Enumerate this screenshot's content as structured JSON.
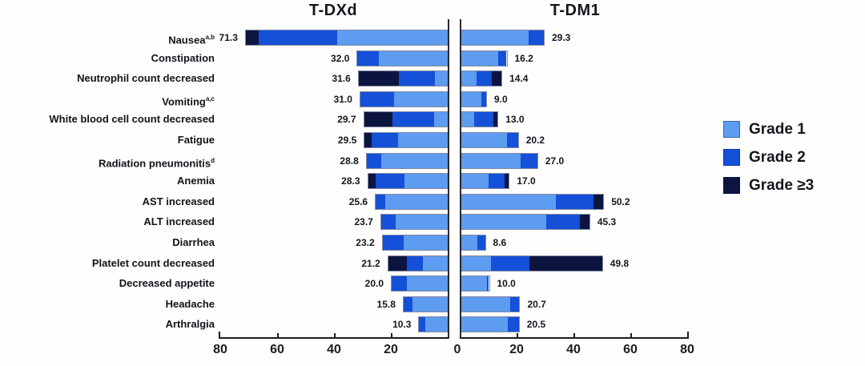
{
  "chart_data": {
    "type": "bar",
    "variant": "butterfly-diverging-stacked-horizontal",
    "panels": [
      {
        "name": "T-DXd",
        "side": "left"
      },
      {
        "name": "T-DM1",
        "side": "right"
      }
    ],
    "legend": [
      {
        "label": "Grade 1",
        "color": "#5d9cf0"
      },
      {
        "label": "Grade 2",
        "color": "#1550d8"
      },
      {
        "label": "Grade ≥3",
        "color": "#0c1540"
      }
    ],
    "axis": {
      "max": 80,
      "ticks_left": [
        80,
        60,
        40,
        20
      ],
      "center_label": "0",
      "ticks_right": [
        20,
        40,
        60,
        80
      ],
      "grid": false
    },
    "rows": [
      {
        "label": "Nausea",
        "sup": "a,b",
        "left": {
          "total": 71.3,
          "label": "71.3",
          "grade1": 38.9,
          "grade2": 27.7,
          "grade3plus": 4.7
        },
        "right": {
          "total": 29.3,
          "label": "29.3",
          "grade1": 23.7,
          "grade2": 5.6,
          "grade3plus": 0
        }
      },
      {
        "label": "Constipation",
        "sup": "",
        "left": {
          "total": 32.0,
          "label": "32.0",
          "grade1": 24.5,
          "grade2": 7.5,
          "grade3plus": 0
        },
        "right": {
          "total": 16.2,
          "label": "16.2",
          "grade1": 13.1,
          "grade2": 3.1,
          "grade3plus": 0
        }
      },
      {
        "label": "Neutrophil count decreased",
        "sup": "",
        "left": {
          "total": 31.6,
          "label": "31.6",
          "grade1": 4.3,
          "grade2": 12.8,
          "grade3plus": 14.5
        },
        "right": {
          "total": 14.4,
          "label": "14.4",
          "grade1": 5.3,
          "grade2": 5.6,
          "grade3plus": 3.5
        }
      },
      {
        "label": "Vomiting",
        "sup": "a,c",
        "left": {
          "total": 31.0,
          "label": "31.0",
          "grade1": 18.9,
          "grade2": 12.1,
          "grade3plus": 0
        },
        "right": {
          "total": 9.0,
          "label": "9.0",
          "grade1": 7.2,
          "grade2": 1.8,
          "grade3plus": 0
        }
      },
      {
        "label": "White blood cell count decreased",
        "sup": "",
        "left": {
          "total": 29.7,
          "label": "29.7",
          "grade1": 4.7,
          "grade2": 14.8,
          "grade3plus": 10.2
        },
        "right": {
          "total": 13.0,
          "label": "13.0",
          "grade1": 4.5,
          "grade2": 7.0,
          "grade3plus": 1.5
        }
      },
      {
        "label": "Fatigue",
        "sup": "",
        "left": {
          "total": 29.5,
          "label": "29.5",
          "grade1": 17.6,
          "grade2": 9.3,
          "grade3plus": 2.6
        },
        "right": {
          "total": 20.2,
          "label": "20.2",
          "grade1": 16.2,
          "grade2": 4.0,
          "grade3plus": 0
        }
      },
      {
        "label": "Radiation pneumonitis",
        "sup": "d",
        "left": {
          "total": 28.8,
          "label": "28.8",
          "grade1": 23.6,
          "grade2": 5.2,
          "grade3plus": 0
        },
        "right": {
          "total": 27.0,
          "label": "27.0",
          "grade1": 21.0,
          "grade2": 6.0,
          "grade3plus": 0
        }
      },
      {
        "label": "Anemia",
        "sup": "",
        "left": {
          "total": 28.3,
          "label": "28.3",
          "grade1": 15.2,
          "grade2": 10.3,
          "grade3plus": 2.8
        },
        "right": {
          "total": 17.0,
          "label": "17.0",
          "grade1": 9.6,
          "grade2": 5.8,
          "grade3plus": 1.6
        }
      },
      {
        "label": "AST increased",
        "sup": "",
        "left": {
          "total": 25.6,
          "label": "25.6",
          "grade1": 22.2,
          "grade2": 3.4,
          "grade3plus": 0
        },
        "right": {
          "total": 50.2,
          "label": "50.2",
          "grade1": 33.4,
          "grade2": 13.2,
          "grade3plus": 3.6
        }
      },
      {
        "label": "ALT increased",
        "sup": "",
        "left": {
          "total": 23.7,
          "label": "23.7",
          "grade1": 18.5,
          "grade2": 5.2,
          "grade3plus": 0
        },
        "right": {
          "total": 45.3,
          "label": "45.3",
          "grade1": 30.0,
          "grade2": 11.8,
          "grade3plus": 3.5
        }
      },
      {
        "label": "Diarrhea",
        "sup": "",
        "left": {
          "total": 23.2,
          "label": "23.2",
          "grade1": 15.7,
          "grade2": 7.5,
          "grade3plus": 0
        },
        "right": {
          "total": 8.6,
          "label": "8.6",
          "grade1": 5.8,
          "grade2": 2.8,
          "grade3plus": 0
        }
      },
      {
        "label": "Platelet count decreased",
        "sup": "",
        "left": {
          "total": 21.2,
          "label": "21.2",
          "grade1": 8.8,
          "grade2": 5.8,
          "grade3plus": 6.6
        },
        "right": {
          "total": 49.8,
          "label": "49.8",
          "grade1": 10.3,
          "grade2": 13.5,
          "grade3plus": 26.0
        }
      },
      {
        "label": "Decreased appetite",
        "sup": "",
        "left": {
          "total": 20.0,
          "label": "20.0",
          "grade1": 14.4,
          "grade2": 5.6,
          "grade3plus": 0
        },
        "right": {
          "total": 10.0,
          "label": "10.0",
          "grade1": 9.4,
          "grade2": 0.6,
          "grade3plus": 0
        }
      },
      {
        "label": "Headache",
        "sup": "",
        "left": {
          "total": 15.8,
          "label": "15.8",
          "grade1": 12.5,
          "grade2": 3.3,
          "grade3plus": 0
        },
        "right": {
          "total": 20.7,
          "label": "20.7",
          "grade1": 17.4,
          "grade2": 3.3,
          "grade3plus": 0
        }
      },
      {
        "label": "Arthralgia",
        "sup": "",
        "left": {
          "total": 10.3,
          "label": "10.3",
          "grade1": 8.0,
          "grade2": 2.3,
          "grade3plus": 0
        },
        "right": {
          "total": 20.5,
          "label": "20.5",
          "grade1": 16.5,
          "grade2": 4.0,
          "grade3plus": 0
        }
      }
    ]
  }
}
